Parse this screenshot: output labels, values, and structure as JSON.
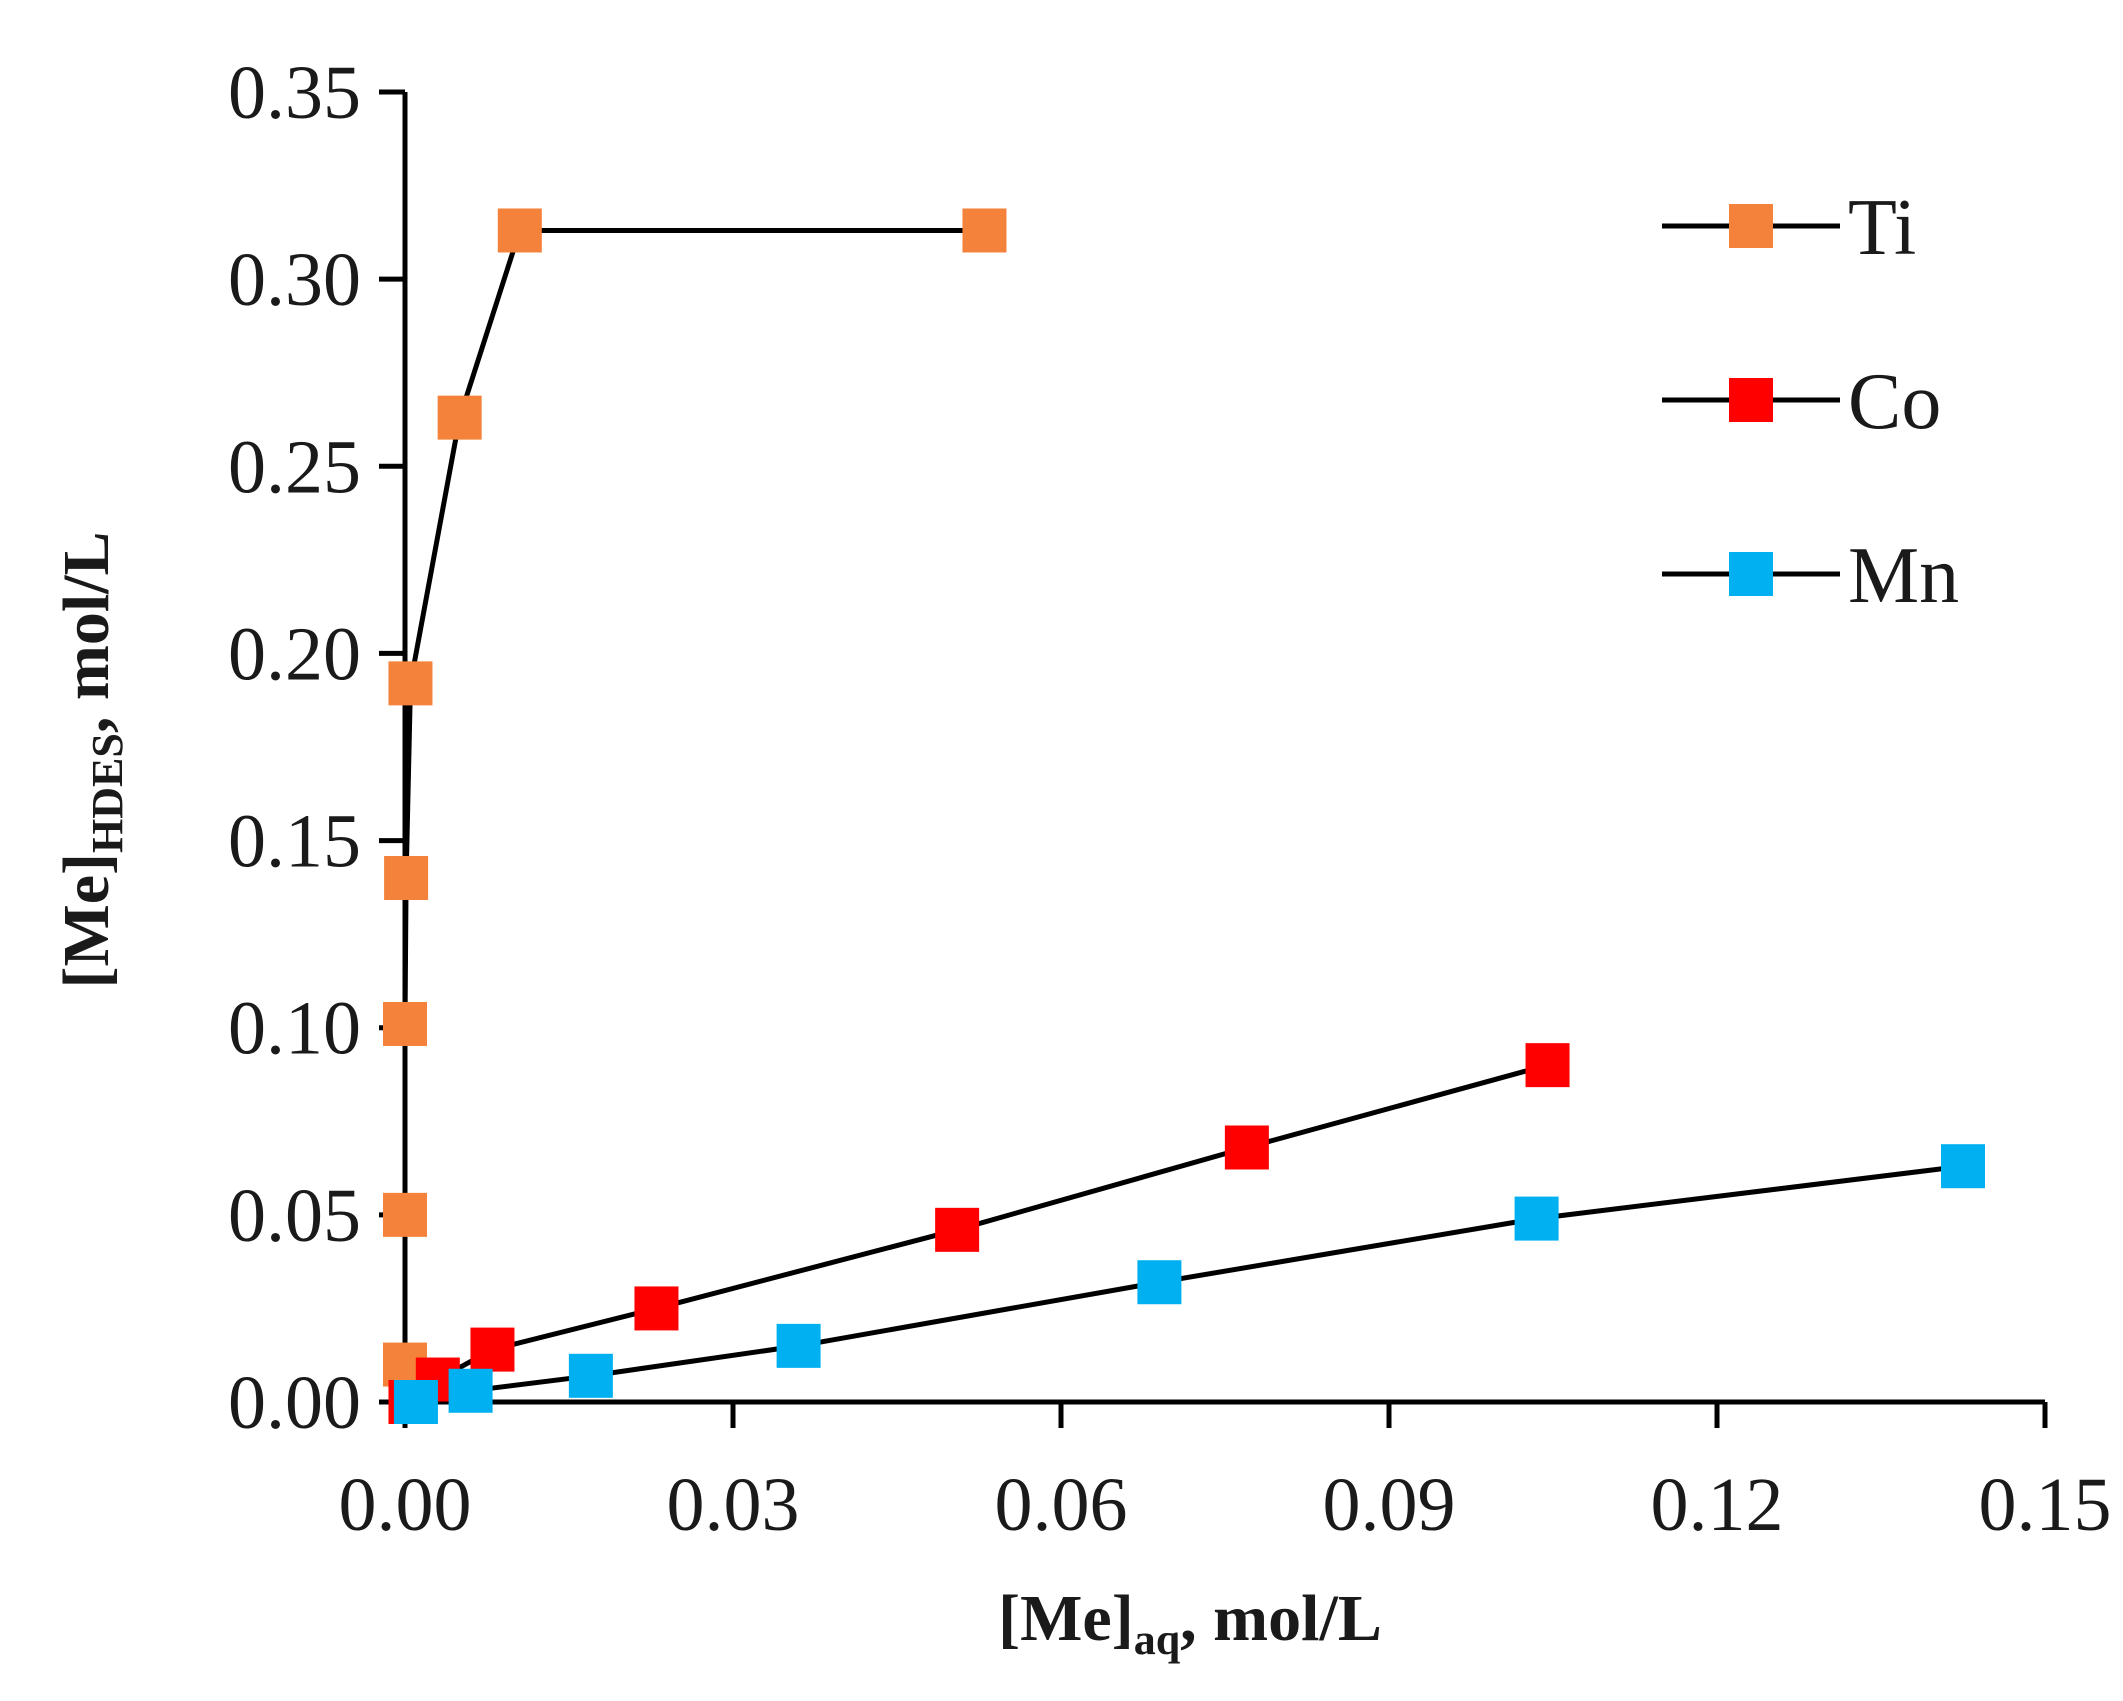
{
  "chart_data": {
    "type": "line",
    "title": "",
    "xlabel": {
      "main": "[Me]",
      "sub": "aq",
      "suffix": ", mol/L"
    },
    "ylabel": {
      "main": "[Me]",
      "sub": "HDES",
      "suffix": ", mol/L"
    },
    "xlim": [
      0,
      0.15
    ],
    "ylim": [
      0,
      0.35
    ],
    "x_ticks": [
      0.0,
      0.03,
      0.06,
      0.09,
      0.12,
      0.15
    ],
    "x_tick_labels": [
      "0.00",
      "0.03",
      "0.06",
      "0.09",
      "0.12",
      "0.15"
    ],
    "y_ticks": [
      0.0,
      0.05,
      0.1,
      0.15,
      0.2,
      0.25,
      0.3,
      0.35
    ],
    "y_tick_labels": [
      "0.00",
      "0.05",
      "0.10",
      "0.15",
      "0.20",
      "0.25",
      "0.30",
      "0.35"
    ],
    "grid": false,
    "legend": "top-right",
    "marker": "square",
    "series": [
      {
        "name": "Ti",
        "color": "#F5823A",
        "x": [
          0.0,
          0.0,
          0.0,
          0.0001,
          0.0005,
          0.005,
          0.0105,
          0.053
        ],
        "y": [
          0.01,
          0.05,
          0.101,
          0.14,
          0.192,
          0.263,
          0.313,
          0.313
        ]
      },
      {
        "name": "Co",
        "color": "#FF0000",
        "x": [
          0.0005,
          0.003,
          0.008,
          0.023,
          0.0505,
          0.077,
          0.1045
        ],
        "y": [
          0.0,
          0.006,
          0.014,
          0.025,
          0.046,
          0.068,
          0.09
        ]
      },
      {
        "name": "Mn",
        "color": "#00B0F0",
        "x": [
          0.001,
          0.006,
          0.017,
          0.036,
          0.069,
          0.1035,
          0.1425
        ],
        "y": [
          0.0,
          0.003,
          0.007,
          0.015,
          0.032,
          0.049,
          0.063
        ]
      }
    ]
  }
}
